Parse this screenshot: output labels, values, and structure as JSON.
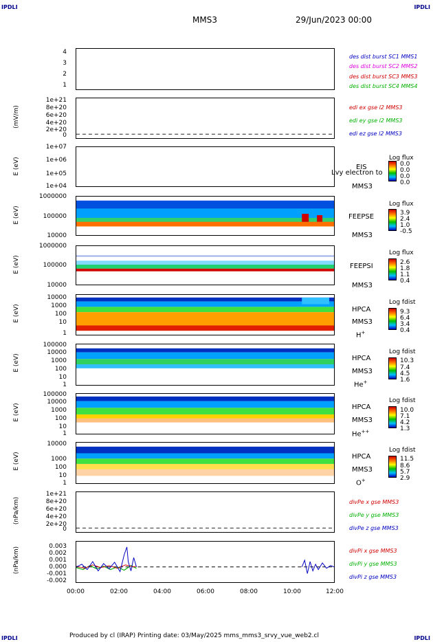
{
  "corner_tl": "IPDLI",
  "corner_tr": "IPDLI",
  "corner_bl": "IPDLI",
  "corner_br": "IPDLI",
  "title": "MMS3",
  "date": "29/Jun/2023 00:00",
  "footer": "Produced by cl (IRAP)   Printing date: 03/May/2025   mms_mms3_srvy_vue_web2.cl",
  "xticks": [
    "00:00",
    "02:00",
    "04:00",
    "06:00",
    "08:00",
    "10:00",
    "12:00"
  ],
  "colors": {
    "sc1": "#0000c0",
    "sc2": "#e000e0",
    "sc3": "#d00000",
    "sc4": "#00b000",
    "x": "#d00000",
    "y": "#00b000",
    "z": "#0000c0"
  },
  "chart_data": [
    {
      "type": "line",
      "name": "des dist burst",
      "yticks": [
        "4",
        "3",
        "2",
        "1"
      ],
      "legend": [
        "des dist burst SC1 MMS1",
        "des dist burst SC2 MMS2",
        "des dist burst SC3 MMS3",
        "des dist burst SC4 MMS4"
      ]
    },
    {
      "type": "line",
      "name": "edi e gse",
      "ylabel": "(mV/m)",
      "yticks": [
        "1e+21",
        "8e+20",
        "6e+20",
        "4e+20",
        "2e+20",
        "0"
      ],
      "legend": [
        "edi ex gse l2 MMS3",
        "edi ey gse l2 MMS3",
        "edi ez gse l2 MMS3"
      ]
    },
    {
      "type": "heatmap",
      "ylabel": "E (eV)",
      "yticks": [
        "1e+07",
        "1e+06",
        "1e+05",
        "1e+04"
      ],
      "instrument": [
        "EIS",
        "MMS3"
      ],
      "overlay": "Lvy electron to",
      "cbar_title": "Log flux",
      "cbar": [
        "0.0",
        "0.0",
        "0.0",
        "0.0"
      ]
    },
    {
      "type": "heatmap",
      "ylabel": "E (eV)",
      "yticks": [
        "1000000",
        "100000",
        "10000"
      ],
      "instrument": [
        "FEEPSE",
        "MMS3"
      ],
      "cbar_title": "Log flux",
      "cbar": [
        "3.9",
        "2.4",
        "1.0",
        "-0.5"
      ]
    },
    {
      "type": "heatmap",
      "ylabel": "E (eV)",
      "yticks": [
        "1000000",
        "100000",
        "10000"
      ],
      "instrument": [
        "FEEPSI",
        "MMS3"
      ],
      "cbar_title": "Log flux",
      "cbar": [
        "2.6",
        "1.8",
        "1.1",
        "0.4"
      ]
    },
    {
      "type": "heatmap",
      "ylabel": "E (eV)",
      "yticks": [
        "10000",
        "1000",
        "100",
        "10",
        "1"
      ],
      "instrument": [
        "HPCA",
        "MMS3"
      ],
      "species": "H",
      "sup": "+",
      "cbar_title": "Log fdist",
      "cbar": [
        "9.3",
        "6.4",
        "3.4",
        "0.4"
      ]
    },
    {
      "type": "heatmap",
      "ylabel": "E (eV)",
      "yticks": [
        "100000",
        "10000",
        "1000",
        "100",
        "10",
        "1"
      ],
      "instrument": [
        "HPCA",
        "MMS3"
      ],
      "species": "He",
      "sup": "+",
      "cbar_title": "Log fdist",
      "cbar": [
        "10.3",
        "7.4",
        "4.5",
        "1.6"
      ]
    },
    {
      "type": "heatmap",
      "ylabel": "E (eV)",
      "yticks": [
        "100000",
        "10000",
        "1000",
        "100",
        "10",
        "1"
      ],
      "instrument": [
        "HPCA",
        "MMS3"
      ],
      "species": "He",
      "sup": "++",
      "cbar_title": "Log fdist",
      "cbar": [
        "10.0",
        "7.1",
        "4.2",
        "1.3"
      ]
    },
    {
      "type": "heatmap",
      "ylabel": "E (eV)",
      "yticks": [
        "10000",
        "1000",
        "100",
        "10",
        "1"
      ],
      "instrument": [
        "HPCA",
        "MMS3"
      ],
      "species": "O",
      "sup": "+",
      "cbar_title": "Log fdist",
      "cbar": [
        "11.5",
        "8.6",
        "5.7",
        "2.9"
      ]
    },
    {
      "type": "line",
      "ylabel": "(nPa/km)",
      "yticks": [
        "1e+21",
        "8e+20",
        "6e+20",
        "4e+20",
        "2e+20",
        "0"
      ],
      "legend": [
        "divPe x gse MMS3",
        "divPe y gse MMS3",
        "divPe z gse MMS3"
      ]
    },
    {
      "type": "line",
      "ylabel": "(nPa/km)",
      "yticks": [
        "0.003",
        "0.002",
        "0.001",
        "0.000",
        "-0.001",
        "-0.002"
      ],
      "ylim": [
        -0.002,
        0.003
      ],
      "legend": [
        "divPi x gse MMS3",
        "divPi y gse MMS3",
        "divPi z gse MMS3"
      ]
    }
  ]
}
